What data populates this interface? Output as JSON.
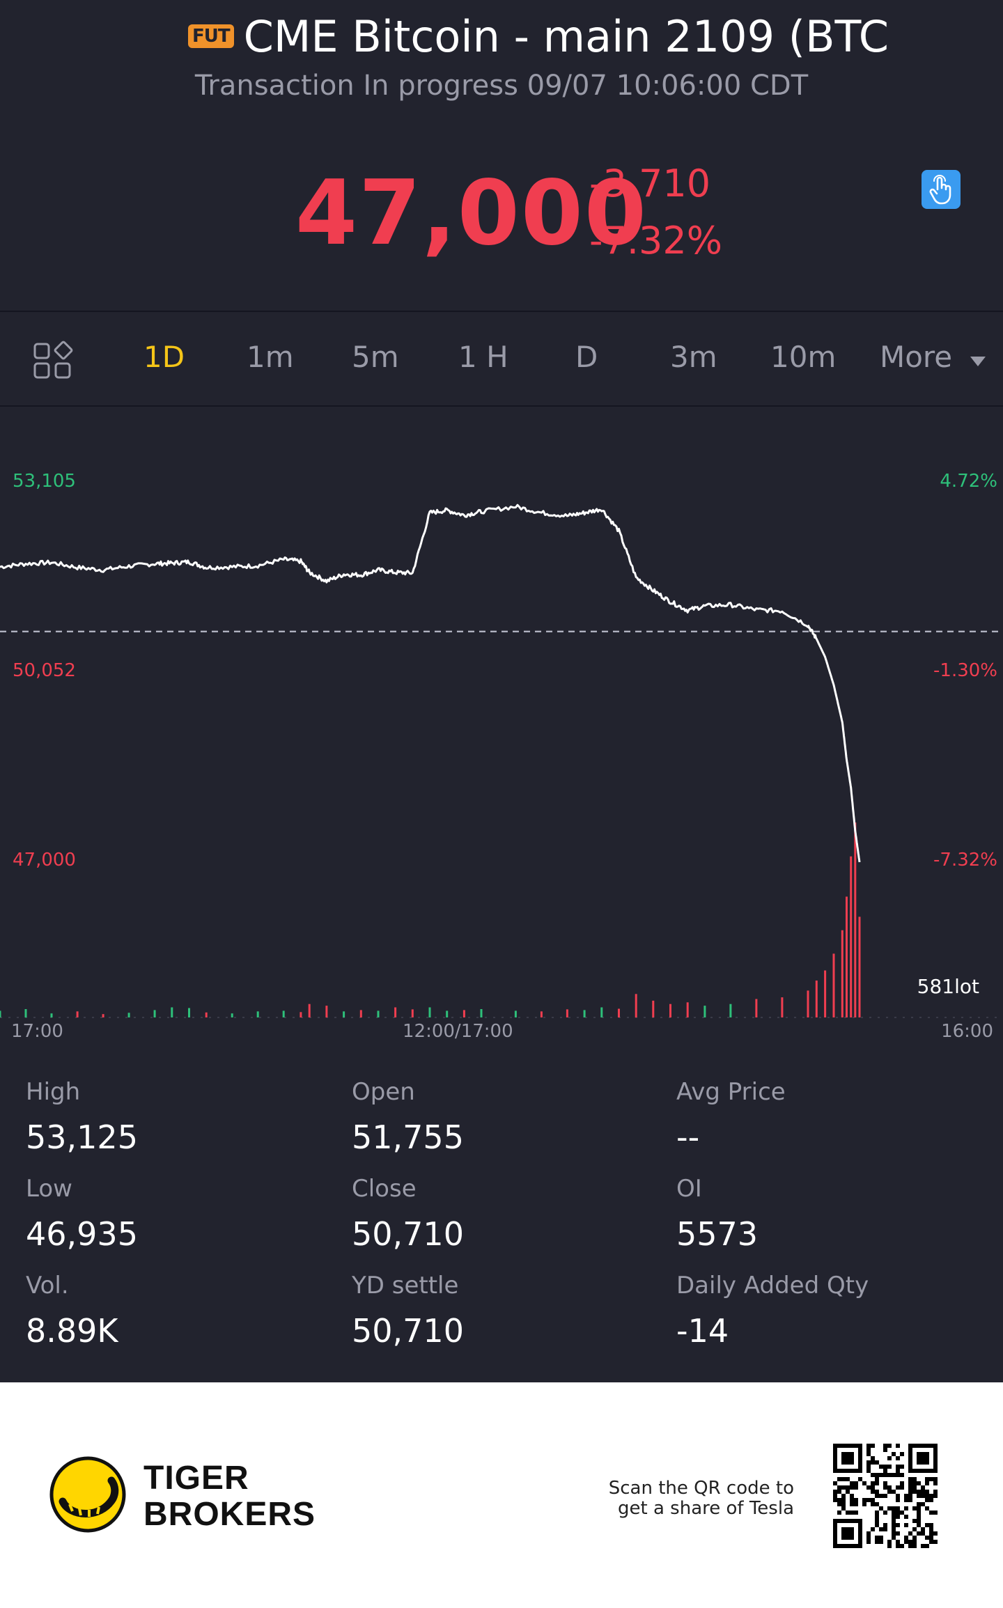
{
  "header": {
    "badge": "FUT",
    "title": "CME Bitcoin - main 2109 (BTC",
    "subtitle": "Transaction In progress 09/07 10:06:00 CDT"
  },
  "quote": {
    "price": "47,000",
    "change": "-3,710",
    "change_pct": "-7.32%"
  },
  "tabs": [
    "1D",
    "1m",
    "5m",
    "1 H",
    "D",
    "3m",
    "10m",
    "More"
  ],
  "active_tab": "1D",
  "chart_data": {
    "type": "line",
    "y_labels_left": [
      "53,105",
      "50,052",
      "47,000"
    ],
    "y_labels_right": [
      "4.72%",
      "-1.30%",
      "-7.32%"
    ],
    "x_labels": [
      "17:00",
      "12:00/17:00",
      "16:00"
    ],
    "reference_price": 50710,
    "ylim": [
      47000,
      53105
    ],
    "volume_label": "581lot",
    "x": [
      0,
      3,
      6,
      9,
      12,
      15,
      18,
      20,
      22,
      24,
      27,
      30,
      33,
      35,
      36,
      38,
      40,
      42,
      44,
      46,
      48,
      50,
      52,
      54,
      56,
      60,
      63,
      66,
      68,
      70,
      72,
      74,
      76,
      78,
      80,
      82,
      85,
      88,
      91,
      94,
      95,
      96,
      97,
      98,
      98.5,
      99,
      99.5,
      100
    ],
    "y": [
      51750,
      51800,
      51820,
      51740,
      51700,
      51760,
      51800,
      51810,
      51830,
      51740,
      51750,
      51770,
      51870,
      51840,
      51660,
      51520,
      51630,
      51620,
      51700,
      51660,
      51650,
      52620,
      52660,
      52580,
      52640,
      52720,
      52620,
      52570,
      52620,
      52680,
      52330,
      51580,
      51370,
      51190,
      51050,
      51120,
      51140,
      51060,
      51040,
      50810,
      50590,
      50300,
      49850,
      49250,
      48650,
      48200,
      47500,
      47000
    ],
    "volume": [
      20,
      25,
      12,
      18,
      10,
      14,
      22,
      30,
      28,
      15,
      12,
      18,
      20,
      16,
      40,
      35,
      18,
      22,
      20,
      30,
      24,
      30,
      20,
      22,
      25,
      20,
      18,
      24,
      22,
      30,
      26,
      70,
      50,
      40,
      45,
      35,
      40,
      55,
      60,
      80,
      110,
      140,
      190,
      260,
      360,
      480,
      581,
      300
    ]
  },
  "stats": [
    {
      "label": "High",
      "value": "53,125"
    },
    {
      "label": "Open",
      "value": "51,755"
    },
    {
      "label": "Avg Price",
      "value": "--"
    },
    {
      "label": "Low",
      "value": "46,935"
    },
    {
      "label": "Close",
      "value": "50,710"
    },
    {
      "label": "OI",
      "value": "5573"
    },
    {
      "label": "Vol.",
      "value": "8.89K"
    },
    {
      "label": "YD settle",
      "value": "50,710"
    },
    {
      "label": "Daily Added Qty",
      "value": "-14"
    }
  ],
  "footer": {
    "brand_line1": "TIGER",
    "brand_line2": "BROKERS",
    "scan_line1": "Scan the QR code to",
    "scan_line2": "get a share of Tesla"
  },
  "colors": {
    "background": "#22232e",
    "down": "#f03e50",
    "up": "#2ec07a",
    "active_tab": "#f5c518",
    "accent_button": "#3a9bf0"
  }
}
